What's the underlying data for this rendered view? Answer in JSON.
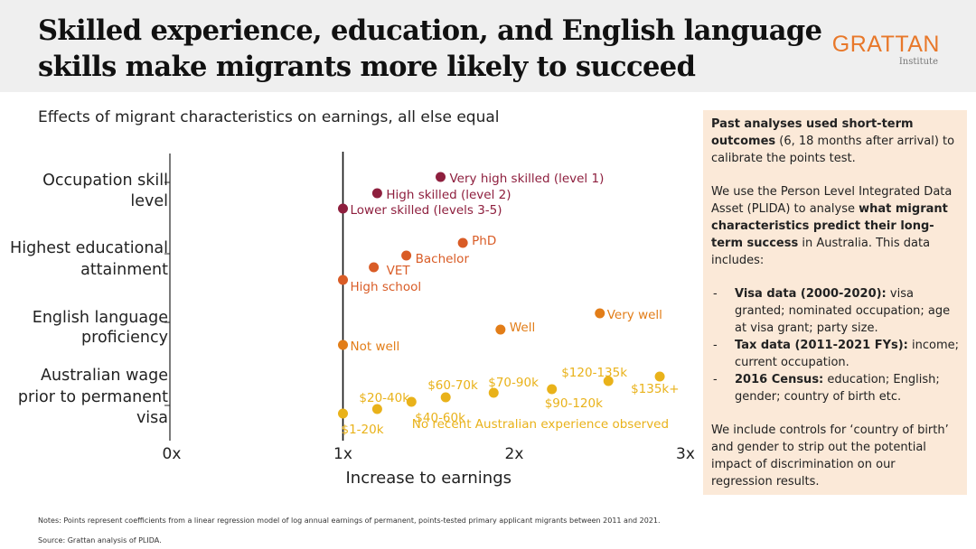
{
  "header": {
    "title_line1": "Skilled experience, education, and English language",
    "title_line2": "skills make migrants more likely to succeed",
    "logo_word": "GRATTAN",
    "logo_sub": "Institute"
  },
  "colors": {
    "header_bg": "#efefef",
    "accent": "#e8782a",
    "panel_bg": "#fbe9d8",
    "occupation": "#8e1f3e",
    "education": "#d95c26",
    "english": "#e27d18",
    "wage": "#e9b21a"
  },
  "chart_data": {
    "type": "scatter",
    "title": "Effects of migrant characteristics on earnings, all else equal",
    "xlabel": "Increase to earnings",
    "xlim": [
      0,
      3
    ],
    "xticks": [
      "0x",
      "1x",
      "2x",
      "3x"
    ],
    "reference_line": 1,
    "groups": [
      {
        "label_lines": [
          "Occupation skill",
          "level"
        ],
        "color": "#8e1f3e",
        "points": [
          {
            "label": "Very high skilled (level 1)",
            "x": 1.57
          },
          {
            "label": "High skilled (level 2)",
            "x": 1.2
          },
          {
            "label": "Lower skilled (levels 3-5)",
            "x": 1.0
          }
        ]
      },
      {
        "label_lines": [
          "Highest educational",
          "attainment"
        ],
        "color": "#d95c26",
        "points": [
          {
            "label": "PhD",
            "x": 1.7
          },
          {
            "label": "Bachelor",
            "x": 1.37
          },
          {
            "label": "VET",
            "x": 1.18
          },
          {
            "label": "High school",
            "x": 1.0
          }
        ]
      },
      {
        "label_lines": [
          "English language",
          "proficiency"
        ],
        "color": "#e27d18",
        "points": [
          {
            "label": "Very well",
            "x": 2.5
          },
          {
            "label": "Well",
            "x": 1.92
          },
          {
            "label": "Not well",
            "x": 1.0
          }
        ]
      },
      {
        "label_lines": [
          "Australian wage",
          "prior to permanent",
          "visa"
        ],
        "color": "#e9b21a",
        "points": [
          {
            "label": "$135k+",
            "x": 2.85
          },
          {
            "label": "$120-135k",
            "x": 2.55
          },
          {
            "label": "$90-120k",
            "x": 2.22
          },
          {
            "label": "$70-90k",
            "x": 1.88
          },
          {
            "label": "$60-70k",
            "x": 1.6
          },
          {
            "label": "$40-60k",
            "x": 1.4
          },
          {
            "label": "$20-40k",
            "x": 1.2
          },
          {
            "label": "$1-20k",
            "x": 1.0
          },
          {
            "label": "No recent Australian experience observed",
            "x": 1.36
          }
        ]
      }
    ]
  },
  "panel": {
    "p1_bold": "Past analyses used short-term outcomes",
    "p1_rest": " (6, 18 months after arrival) to calibrate the points test.",
    "p2_a": "We use the Person Level Integrated Data Asset (PLIDA) to analyse ",
    "p2_bold": "what migrant characteristics predict their long-term success",
    "p2_b": " in Australia. This data includes:",
    "items": [
      {
        "bold": "Visa data (2000-2020):",
        "text": " visa granted; nominated occupation; age at visa grant; party size."
      },
      {
        "bold": "Tax data (2011-2021 FYs):",
        "text": " income; current occupation."
      },
      {
        "bold": "2016 Census:",
        "text": " education; English; gender; country of birth etc."
      }
    ],
    "p3": "We include controls for ‘country of birth’ and gender to strip out the potential impact of discrimination on our regression results."
  },
  "footer": {
    "notes": "Notes: Points represent coefficients from a linear regression model of log annual earnings of permanent, points-tested primary applicant migrants between 2011 and 2021.",
    "source": "Source: Grattan analysis of PLIDA."
  }
}
